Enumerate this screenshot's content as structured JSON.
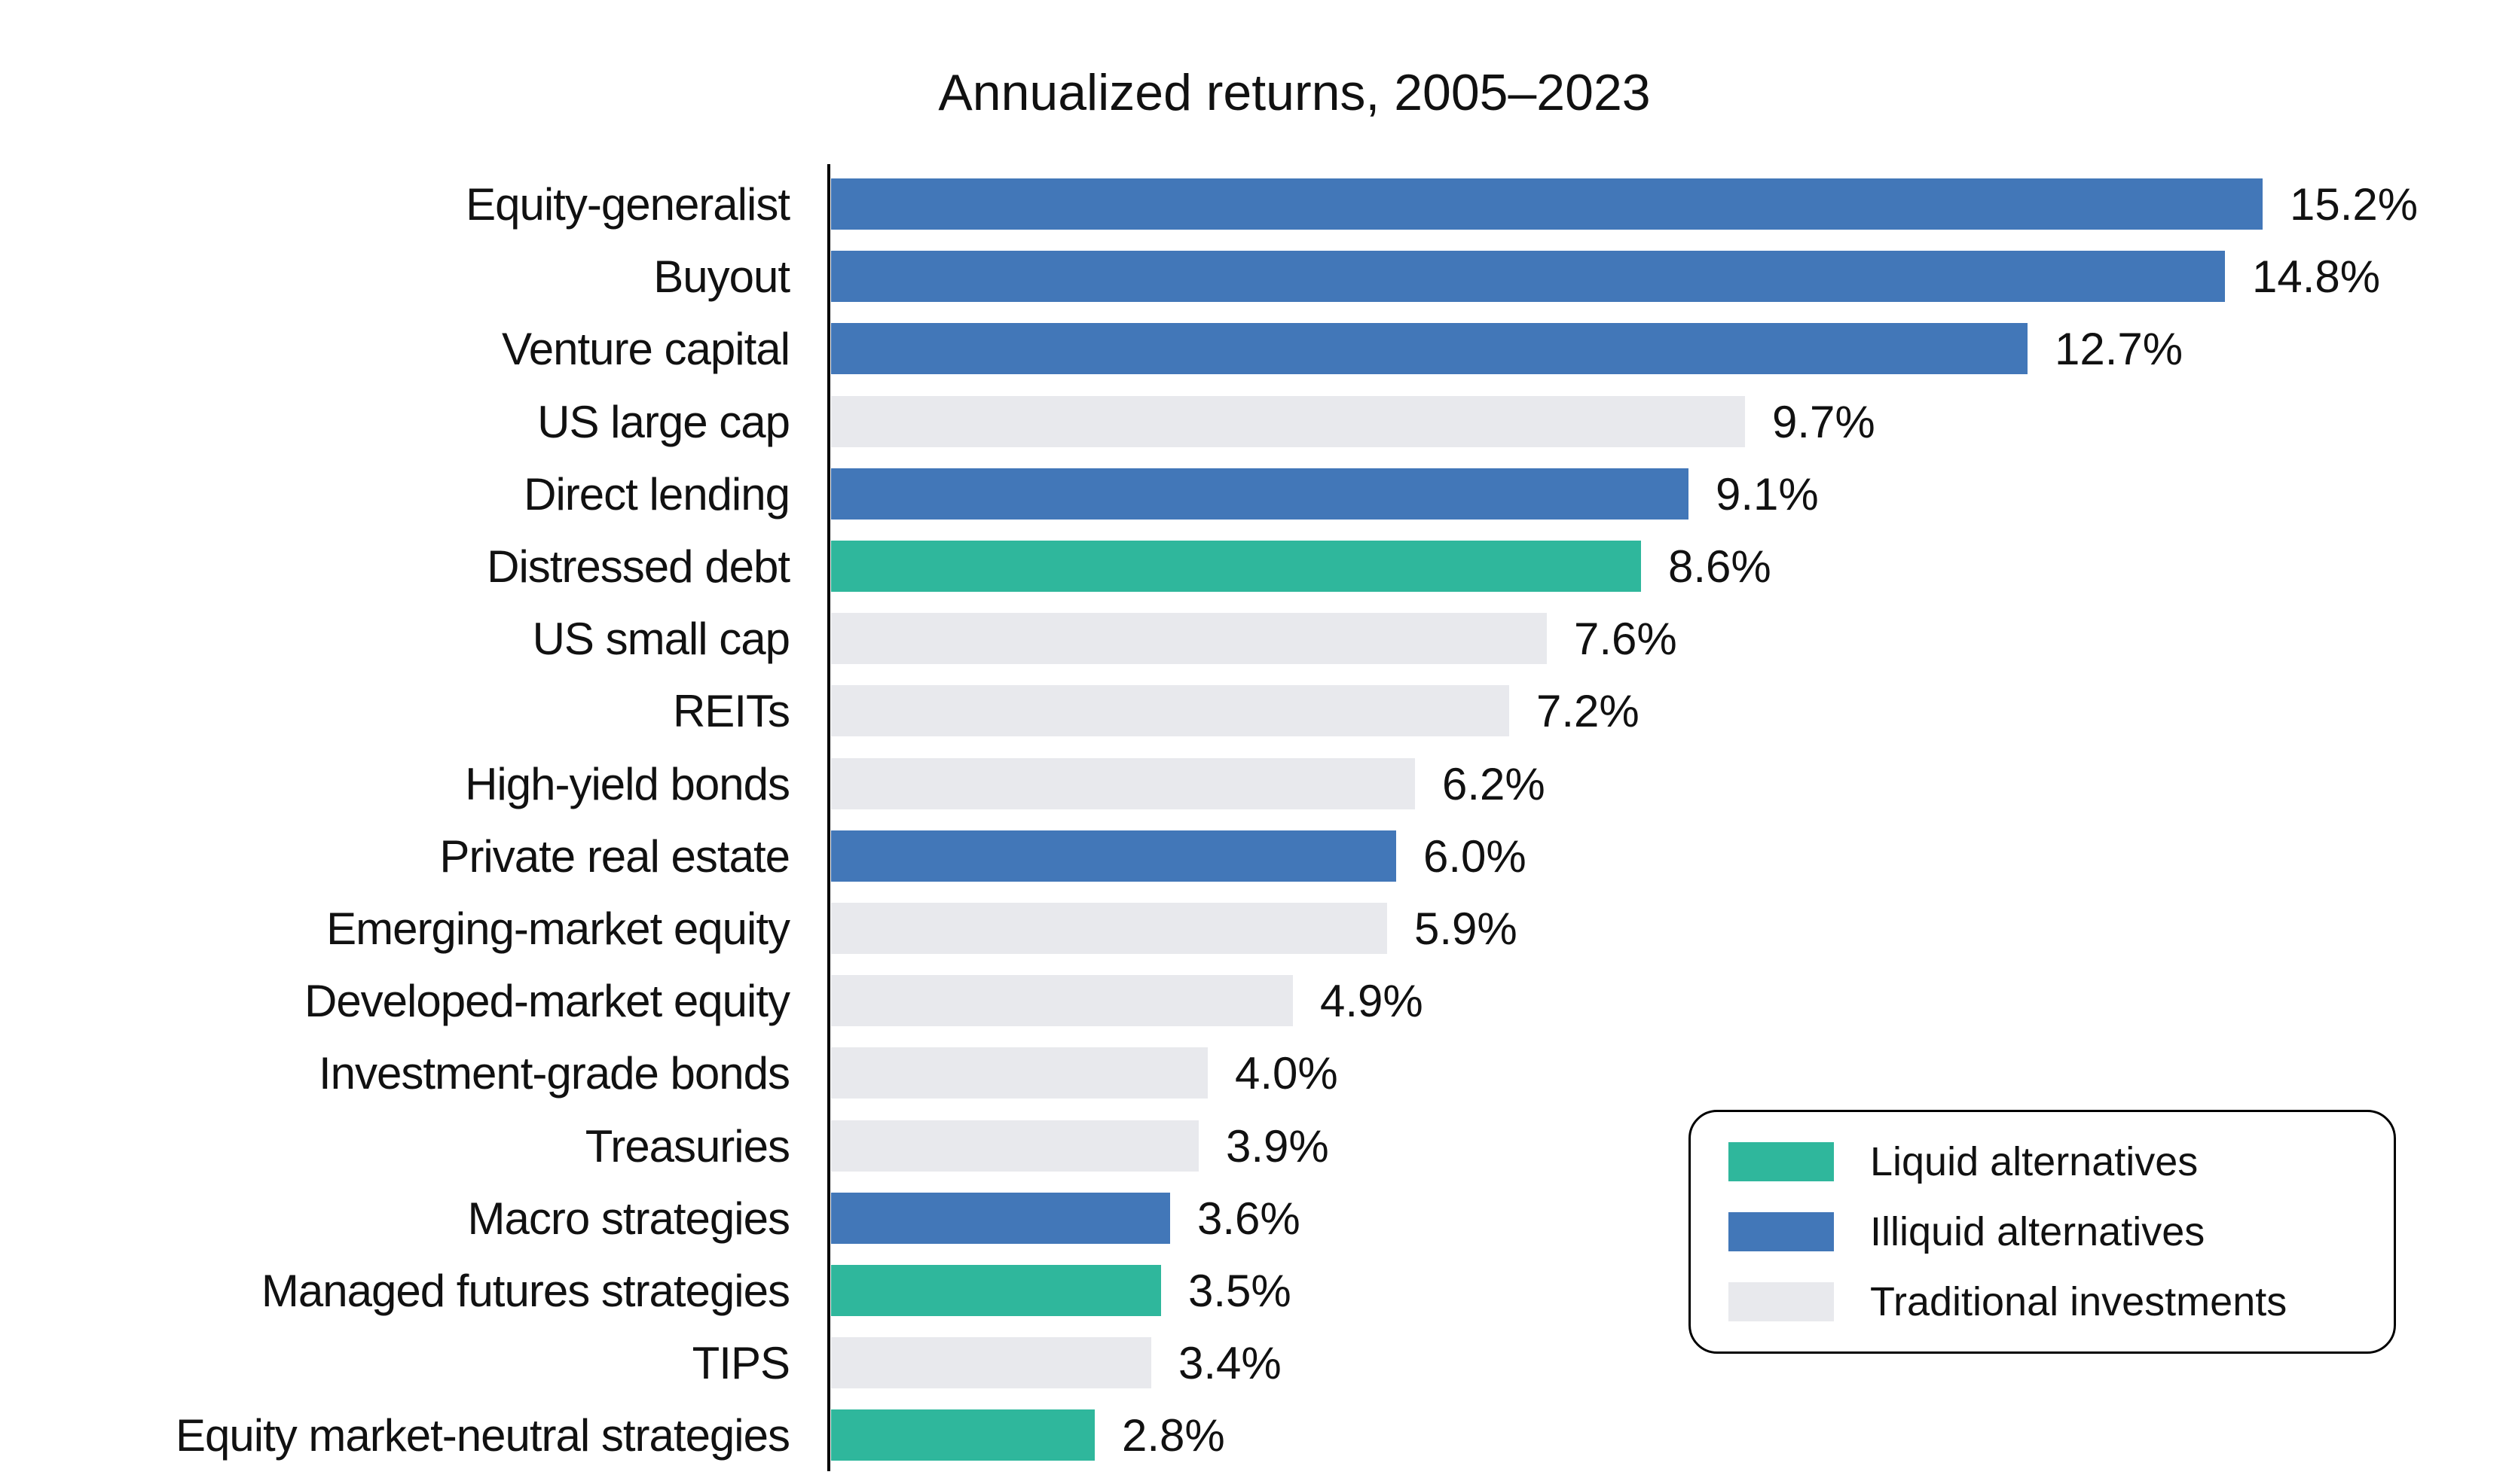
{
  "title": "Annualized returns, 2005–2023",
  "chart_data": {
    "type": "bar",
    "orientation": "horizontal",
    "title": "Annualized returns, 2005–2023",
    "unit": "%",
    "xlim": [
      0,
      17.8
    ],
    "grid": false,
    "legend_position": "bottom-right",
    "categories": [
      "Equity-generalist",
      "Buyout",
      "Venture capital",
      "US large cap",
      "Direct lending",
      "Distressed debt",
      "US small cap",
      "REITs",
      "High-yield bonds",
      "Private real estate",
      "Emerging-market equity",
      "Developed-market equity",
      "Investment-grade bonds",
      "Treasuries",
      "Macro strategies",
      "Managed futures strategies",
      "TIPS",
      "Equity market-neutral strategies"
    ],
    "values": [
      15.2,
      14.8,
      12.7,
      9.7,
      9.1,
      8.6,
      7.6,
      7.2,
      6.2,
      6.0,
      5.9,
      4.9,
      4.0,
      3.9,
      3.6,
      3.5,
      3.4,
      2.8
    ],
    "value_label_format": "percent-one-decimal",
    "groups": [
      "illiquid",
      "illiquid",
      "illiquid",
      "traditional",
      "illiquid",
      "liquid",
      "traditional",
      "traditional",
      "traditional",
      "illiquid",
      "traditional",
      "traditional",
      "traditional",
      "traditional",
      "illiquid",
      "liquid",
      "traditional",
      "liquid"
    ],
    "colors": {
      "liquid": "#2fb79c",
      "illiquid": "#4277b8",
      "traditional": "#e8e9ed"
    },
    "text_color": "#111111",
    "axis_color": "#000000"
  },
  "legend": {
    "items": [
      {
        "label": "Liquid alternatives",
        "color_key": "liquid"
      },
      {
        "label": "Illiquid alternatives",
        "color_key": "illiquid"
      },
      {
        "label": "Traditional investments",
        "color_key": "traditional"
      }
    ]
  }
}
